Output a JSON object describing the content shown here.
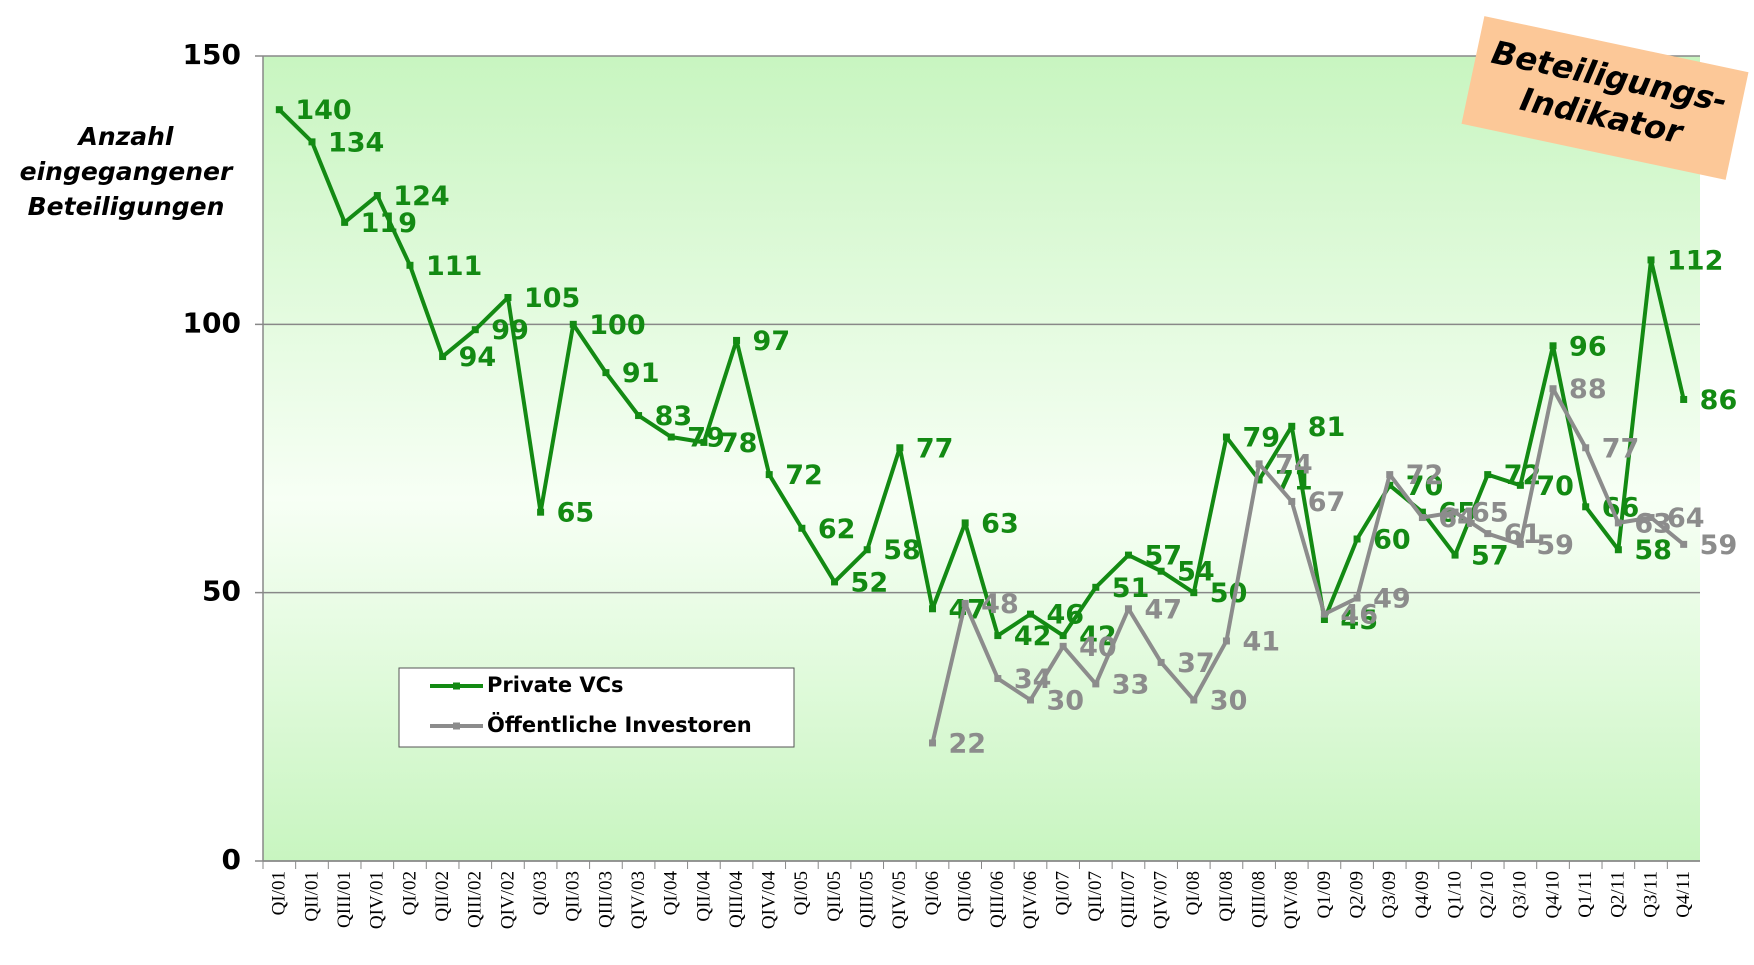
{
  "chart_data": {
    "type": "line",
    "ylabel_lines": [
      "Anzahl",
      "eingegangener",
      "Beteiligungen"
    ],
    "badge_lines": [
      "Beteiligungs-",
      "Indikator"
    ],
    "categories": [
      "QI/01",
      "QII/01",
      "QIII/01",
      "QIV/01",
      "QI/02",
      "QII/02",
      "QIII/02",
      "QIV/02",
      "QI/03",
      "QII/03",
      "QIII/03",
      "QIV/03",
      "QI/04",
      "QII/04",
      "QIII/04",
      "QIV/04",
      "QI/05",
      "QII/05",
      "QIII/05",
      "QIV/05",
      "QI/06",
      "QII/06",
      "QIII/06",
      "QIV/06",
      "QI/07",
      "QII/07",
      "QIII/07",
      "QIV/07",
      "QI/08",
      "QII/08",
      "QIII/08",
      "QIV/08",
      "Q1/09",
      "Q2/09",
      "Q3/09",
      "Q4/09",
      "Q1/10",
      "Q2/10",
      "Q3/10",
      "Q4/10",
      "Q1/11",
      "Q2/11",
      "Q3/11",
      "Q4/11"
    ],
    "series": [
      {
        "name": "Private VCs",
        "color": "#138a13",
        "values": [
          140,
          134,
          119,
          124,
          111,
          94,
          99,
          105,
          65,
          100,
          91,
          83,
          79,
          78,
          97,
          72,
          62,
          52,
          58,
          77,
          47,
          63,
          42,
          46,
          42,
          51,
          57,
          54,
          50,
          79,
          71,
          81,
          45,
          60,
          70,
          65,
          57,
          72,
          70,
          96,
          66,
          58,
          112,
          86
        ]
      },
      {
        "name": "Öffentliche Investoren",
        "color": "#8c8c8c",
        "values": [
          null,
          null,
          null,
          null,
          null,
          null,
          null,
          null,
          null,
          null,
          null,
          null,
          null,
          null,
          null,
          null,
          null,
          null,
          null,
          null,
          22,
          48,
          34,
          30,
          40,
          33,
          47,
          37,
          30,
          41,
          74,
          67,
          46,
          49,
          72,
          64,
          65,
          61,
          59,
          88,
          77,
          63,
          64,
          59
        ]
      }
    ],
    "ylim": [
      0,
      150
    ],
    "yticks": [
      0,
      50,
      100,
      150
    ],
    "grid": true
  }
}
